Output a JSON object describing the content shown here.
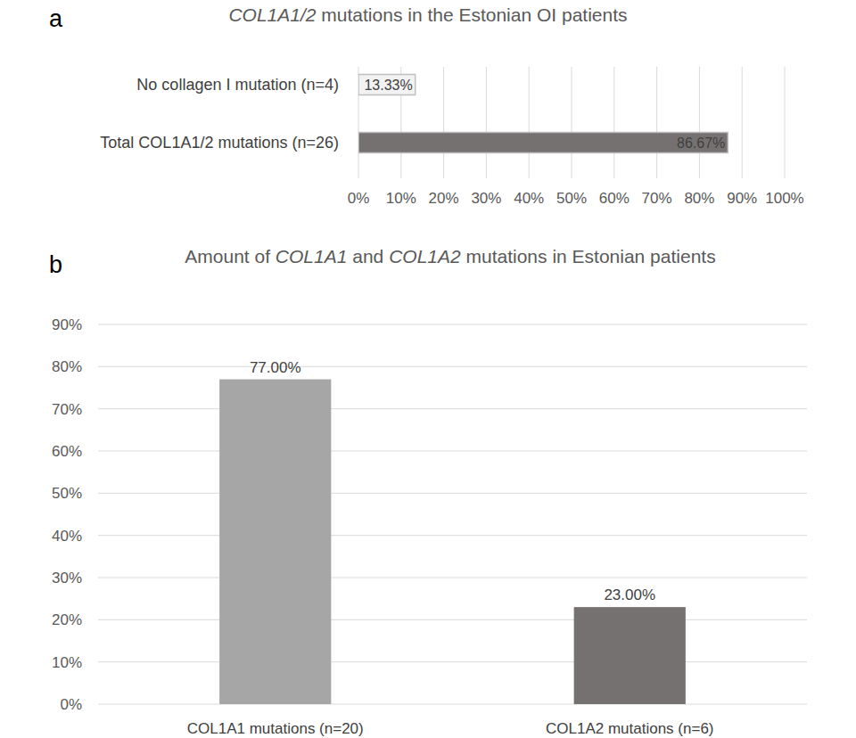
{
  "chart_data": [
    {
      "type": "bar",
      "panel": "a",
      "orientation": "horizontal",
      "title": "COL1A1/2 mutations in the Estonian OI patients",
      "categories": [
        "No collagen I mutation (n=4)",
        "Total COL1A1/2 mutations (n=26)"
      ],
      "values": [
        13.33,
        86.67
      ],
      "value_labels": [
        "13.33%",
        "86.67%"
      ],
      "colors": [
        "#f2f2f2",
        "#767171"
      ],
      "xlim": [
        0,
        100
      ],
      "xticks": [
        {
          "value": 0,
          "label": "0%"
        },
        {
          "value": 10,
          "label": "10%"
        },
        {
          "value": 20,
          "label": "20%"
        },
        {
          "value": 30,
          "label": "30%"
        },
        {
          "value": 40,
          "label": "40%"
        },
        {
          "value": 50,
          "label": "50%"
        },
        {
          "value": 60,
          "label": "60%"
        },
        {
          "value": 70,
          "label": "70%"
        },
        {
          "value": 80,
          "label": "80%"
        },
        {
          "value": 90,
          "label": "90%"
        },
        {
          "value": 100,
          "label": "100%"
        }
      ],
      "grid": true,
      "data_labels": true
    },
    {
      "type": "bar",
      "panel": "b",
      "title": "Amount of COL1A1 and COL1A2 mutations in Estonian patients",
      "categories": [
        "COL1A1 mutations (n=20)",
        "COL1A2 mutations (n=6)"
      ],
      "values": [
        77,
        23
      ],
      "value_labels": [
        "77.00%",
        "23.00%"
      ],
      "colors": [
        "#a6a6a6",
        "#767171"
      ],
      "ylim": [
        0,
        90
      ],
      "yticks": [
        {
          "value": 0,
          "label": "0%"
        },
        {
          "value": 10,
          "label": "10%"
        },
        {
          "value": 20,
          "label": "20%"
        },
        {
          "value": 30,
          "label": "30%"
        },
        {
          "value": 40,
          "label": "40%"
        },
        {
          "value": 50,
          "label": "50%"
        },
        {
          "value": 60,
          "label": "60%"
        },
        {
          "value": 70,
          "label": "70%"
        },
        {
          "value": 80,
          "label": "80%"
        },
        {
          "value": 90,
          "label": "90%"
        }
      ],
      "grid": true,
      "data_labels": true
    }
  ]
}
